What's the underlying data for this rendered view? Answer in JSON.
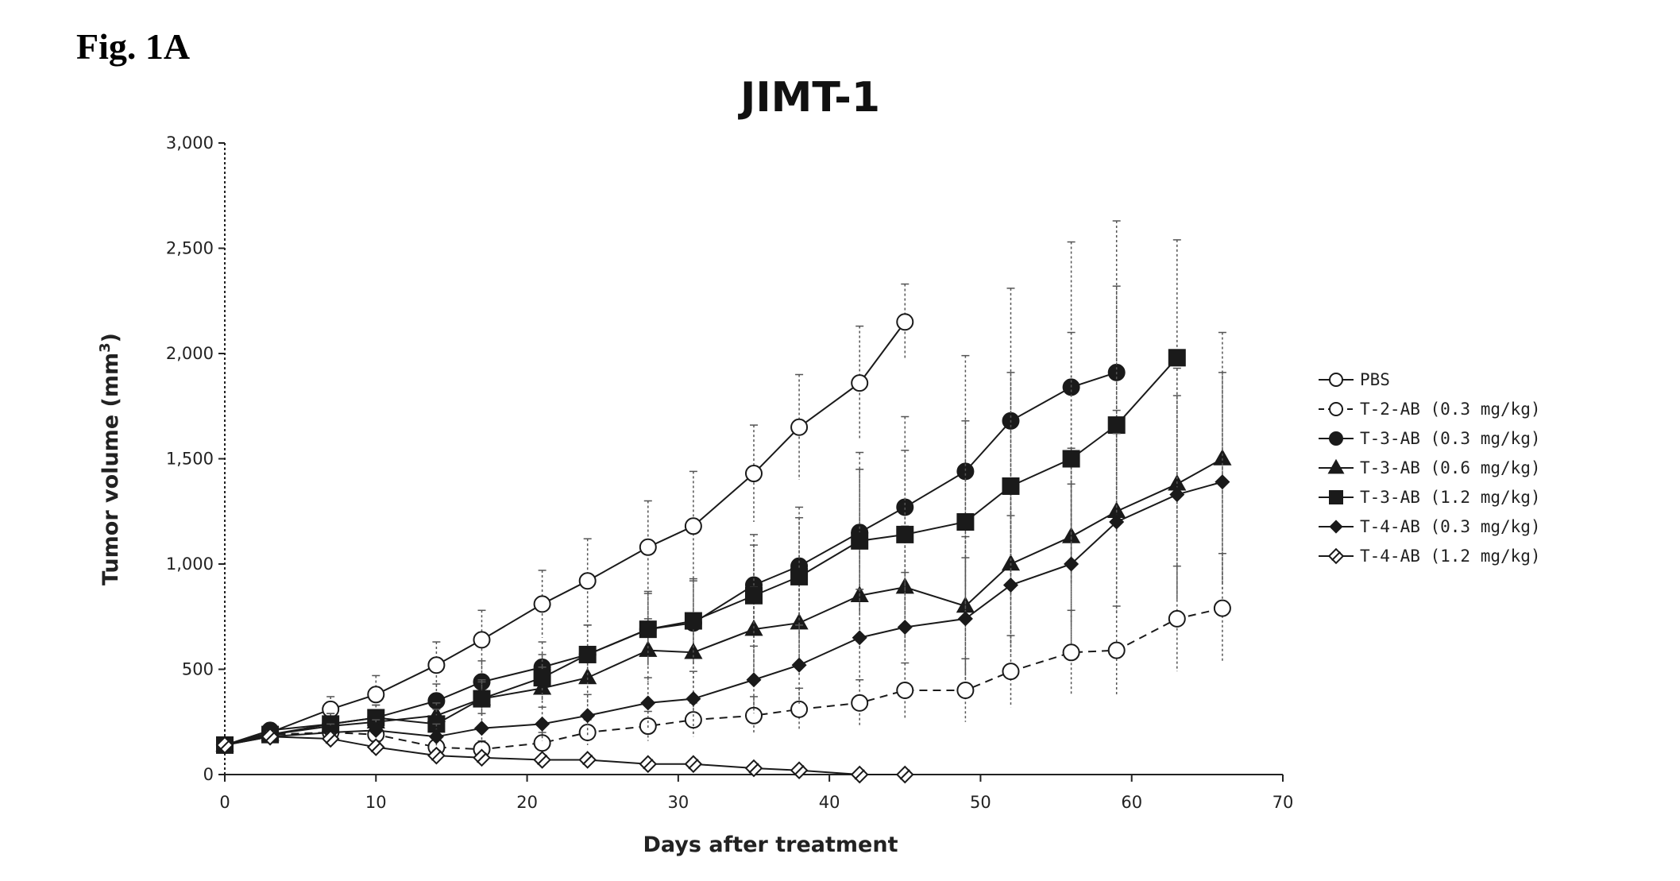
{
  "figure_label": "Fig. 1A",
  "colors": {
    "ink": "#1a1a1a",
    "open_fill": "#ffffff"
  },
  "chart_data": {
    "type": "line",
    "title": "JIMT-1",
    "xlabel": "Days after treatment",
    "ylabel": "Tumor volume (mm",
    "ylabel_sup": "3",
    "ylabel_end": ")",
    "xlim": [
      0,
      70
    ],
    "ylim": [
      0,
      3000
    ],
    "x_ticks": [
      0,
      10,
      20,
      30,
      40,
      50,
      60,
      70
    ],
    "x_tick_labels": [
      "0",
      "10",
      "20",
      "30",
      "40",
      "50",
      "60",
      "70"
    ],
    "y_ticks": [
      0,
      500,
      1000,
      1500,
      2000,
      2500,
      3000
    ],
    "y_tick_labels": [
      "0",
      "500",
      "1,000",
      "1,500",
      "2,000",
      "2,500",
      "3,000"
    ],
    "grid": false,
    "legend_position": "right",
    "series": [
      {
        "name": "PBS",
        "marker": "circle-open",
        "dashed": false,
        "x": [
          0,
          3,
          7,
          10,
          14,
          17,
          21,
          24,
          28,
          31,
          35,
          38,
          42,
          45
        ],
        "y": [
          140,
          200,
          310,
          380,
          520,
          640,
          810,
          920,
          1080,
          1180,
          1430,
          1650,
          1860,
          2150
        ],
        "err": [
          20,
          30,
          60,
          90,
          110,
          140,
          160,
          200,
          220,
          260,
          230,
          250,
          270,
          180
        ]
      },
      {
        "name": "T-2-AB (0.3 mg/kg)",
        "marker": "circle-open",
        "dashed": true,
        "x": [
          0,
          3,
          7,
          10,
          14,
          17,
          21,
          24,
          28,
          31,
          35,
          38,
          42,
          45,
          49,
          52,
          56,
          59,
          63,
          66
        ],
        "y": [
          140,
          190,
          200,
          190,
          130,
          120,
          150,
          200,
          230,
          260,
          280,
          310,
          340,
          400,
          400,
          490,
          580,
          590,
          740,
          790
        ],
        "err": [
          15,
          20,
          30,
          35,
          40,
          40,
          50,
          60,
          70,
          80,
          90,
          100,
          110,
          130,
          150,
          170,
          200,
          210,
          250,
          260
        ]
      },
      {
        "name": "T-3-AB (0.3 mg/kg)",
        "marker": "circle-filled",
        "dashed": false,
        "x": [
          0,
          3,
          7,
          10,
          14,
          17,
          21,
          24,
          28,
          31,
          35,
          38,
          42,
          45,
          49,
          52,
          56,
          59
        ],
        "y": [
          140,
          210,
          240,
          270,
          350,
          440,
          510,
          570,
          690,
          720,
          900,
          990,
          1150,
          1270,
          1440,
          1680,
          1840,
          1910
        ],
        "err": [
          15,
          30,
          50,
          60,
          80,
          100,
          120,
          140,
          180,
          200,
          240,
          280,
          380,
          430,
          550,
          630,
          690,
          720
        ]
      },
      {
        "name": "T-3-AB (0.6 mg/kg)",
        "marker": "triangle-filled",
        "dashed": false,
        "x": [
          0,
          3,
          7,
          10,
          14,
          17,
          21,
          24,
          28,
          31,
          35,
          38,
          42,
          45,
          49,
          52,
          56,
          59,
          63,
          66
        ],
        "y": [
          140,
          190,
          230,
          250,
          280,
          360,
          410,
          460,
          590,
          580,
          690,
          720,
          850,
          890,
          800,
          1000,
          1130,
          1250,
          1380,
          1500
        ],
        "err": [
          15,
          25,
          40,
          50,
          60,
          80,
          100,
          120,
          150,
          160,
          200,
          230,
          260,
          290,
          330,
          380,
          420,
          480,
          550,
          600
        ]
      },
      {
        "name": "T-3-AB (1.2 mg/kg)",
        "marker": "square-filled",
        "dashed": false,
        "x": [
          0,
          3,
          7,
          10,
          14,
          17,
          21,
          24,
          28,
          31,
          35,
          38,
          42,
          45,
          49,
          52,
          56,
          59,
          63
        ],
        "y": [
          140,
          190,
          240,
          270,
          240,
          360,
          460,
          570,
          690,
          730,
          850,
          940,
          1110,
          1140,
          1200,
          1370,
          1500,
          1660,
          1980
        ],
        "err": [
          15,
          30,
          50,
          60,
          70,
          90,
          110,
          140,
          170,
          200,
          240,
          280,
          340,
          400,
          480,
          540,
          600,
          660,
          560
        ]
      },
      {
        "name": "T-4-AB (0.3 mg/kg)",
        "marker": "diamond-filled",
        "dashed": false,
        "x": [
          0,
          3,
          7,
          10,
          14,
          17,
          21,
          24,
          28,
          31,
          35,
          38,
          42,
          45,
          49,
          52,
          56,
          59,
          63,
          66
        ],
        "y": [
          140,
          180,
          200,
          210,
          180,
          220,
          240,
          280,
          340,
          360,
          450,
          520,
          650,
          700,
          740,
          900,
          1000,
          1200,
          1330,
          1390
        ],
        "err": [
          15,
          25,
          40,
          50,
          60,
          70,
          80,
          100,
          120,
          130,
          160,
          190,
          230,
          260,
          290,
          330,
          380,
          420,
          470,
          520
        ]
      },
      {
        "name": "T-4-AB (1.2 mg/kg)",
        "marker": "diamond-open",
        "dashed": false,
        "x": [
          0,
          3,
          7,
          10,
          14,
          17,
          21,
          24,
          28,
          31,
          35,
          38,
          42,
          45
        ],
        "y": [
          140,
          180,
          170,
          130,
          90,
          80,
          70,
          70,
          50,
          50,
          30,
          20,
          0,
          0
        ],
        "err": [
          15,
          20,
          25,
          30,
          25,
          20,
          20,
          20,
          15,
          15,
          10,
          10,
          5,
          5
        ]
      }
    ]
  }
}
